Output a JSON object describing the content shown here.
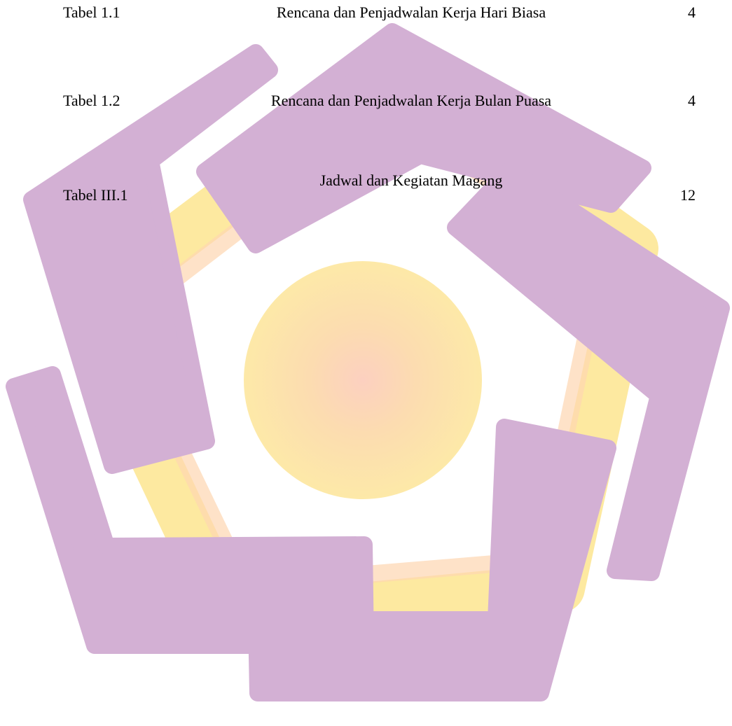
{
  "table": {
    "rows": [
      [
        "Tabel 1.1",
        "Rencana dan Penjadwalan Kerja Hari Biasa",
        "4"
      ],
      [
        "Tabel 1.2",
        "Rencana dan Penjadwalan Kerja Bulan Puasa",
        "4"
      ],
      [
        "Tabel III.1",
        "Jadwal dan Kegiatan Magang",
        "12"
      ]
    ]
  }
}
